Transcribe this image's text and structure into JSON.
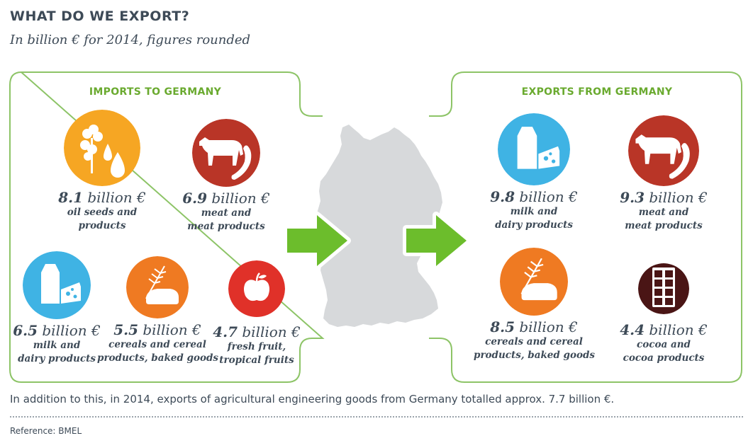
{
  "title": "WHAT DO WE EXPORT?",
  "subtitle": "In billion € for 2014, figures rounded",
  "colors": {
    "frame_green": "#8dc467",
    "heading_green": "#6aaa2f",
    "arrow_green": "#6cbd2c",
    "map_gray": "#d7d9db",
    "text": "#3d4a57",
    "oilseeds": "#f6a623",
    "meat": "#b93527",
    "dairy": "#3fb3e4",
    "cereals": "#ef7a22",
    "fruit": "#e03129",
    "cocoa": "#4a1515"
  },
  "imports": {
    "heading": "IMPORTS TO GERMANY",
    "items": [
      {
        "amount": "8.1",
        "unit": "billion €",
        "line1": "oil seeds and",
        "line2": "products",
        "icon": "oilseeds-icon"
      },
      {
        "amount": "6.9",
        "unit": "billion €",
        "line1": "meat and",
        "line2": "meat products",
        "icon": "meat-icon"
      },
      {
        "amount": "6.5",
        "unit": "billion €",
        "line1": "milk and",
        "line2": "dairy products",
        "icon": "dairy-icon"
      },
      {
        "amount": "5.5",
        "unit": "billion €",
        "line1": "cereals and cereal",
        "line2": "products, baked goods",
        "icon": "cereals-icon"
      },
      {
        "amount": "4.7",
        "unit": "billion €",
        "line1": "fresh fruit,",
        "line2": "tropical fruits",
        "icon": "fruit-icon"
      }
    ]
  },
  "exports": {
    "heading": "EXPORTS FROM GERMANY",
    "items": [
      {
        "amount": "9.8",
        "unit": "billion €",
        "line1": "milk and",
        "line2": "dairy products",
        "icon": "dairy-icon"
      },
      {
        "amount": "9.3",
        "unit": "billion €",
        "line1": "meat and",
        "line2": "meat products",
        "icon": "meat-icon"
      },
      {
        "amount": "8.5",
        "unit": "billion €",
        "line1": "cereals and cereal",
        "line2": "products, baked goods",
        "icon": "cereals-icon"
      },
      {
        "amount": "4.4",
        "unit": "billion €",
        "line1": "cocoa and",
        "line2": "cocoa products",
        "icon": "cocoa-icon"
      }
    ]
  },
  "footnote": "In addition to this, in 2014, exports of agricultural engineering goods from Germany totalled approx. 7.7 billion €.",
  "reference": "Reference: BMEL"
}
